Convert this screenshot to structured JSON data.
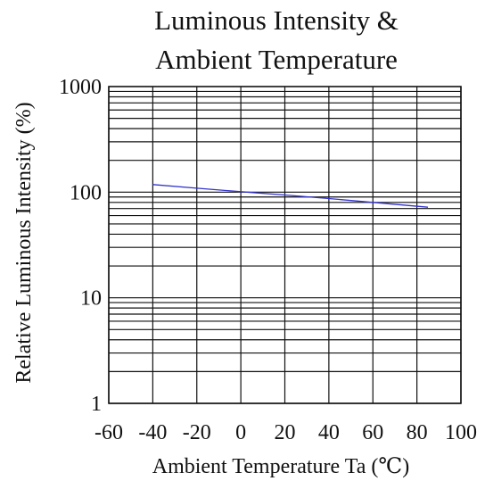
{
  "chart_data": {
    "type": "line",
    "title_lines": [
      "Luminous Intensity &",
      "Ambient Temperature"
    ],
    "xlabel": "Ambient Temperature Ta (℃)",
    "ylabel": "Relative Luminous Intensity (%)",
    "x_scale": "linear",
    "y_scale": "log",
    "xlim": [
      -60,
      100
    ],
    "ylim": [
      1,
      1000
    ],
    "x_ticks": [
      -60,
      -40,
      -20,
      0,
      20,
      40,
      60,
      80,
      100
    ],
    "x_tick_labels": [
      "-60",
      "-40",
      "-20",
      "0",
      "20",
      "40",
      "60",
      "80",
      "100"
    ],
    "y_ticks": [
      1,
      10,
      100,
      1000
    ],
    "y_tick_labels": [
      "1",
      "10",
      "100",
      "1000"
    ],
    "grid": true,
    "series": [
      {
        "color": "#3333cc",
        "x": [
          -40,
          -20,
          0,
          20,
          40,
          60,
          85
        ],
        "y": [
          118,
          109,
          101,
          94,
          87,
          80,
          72
        ]
      }
    ]
  }
}
